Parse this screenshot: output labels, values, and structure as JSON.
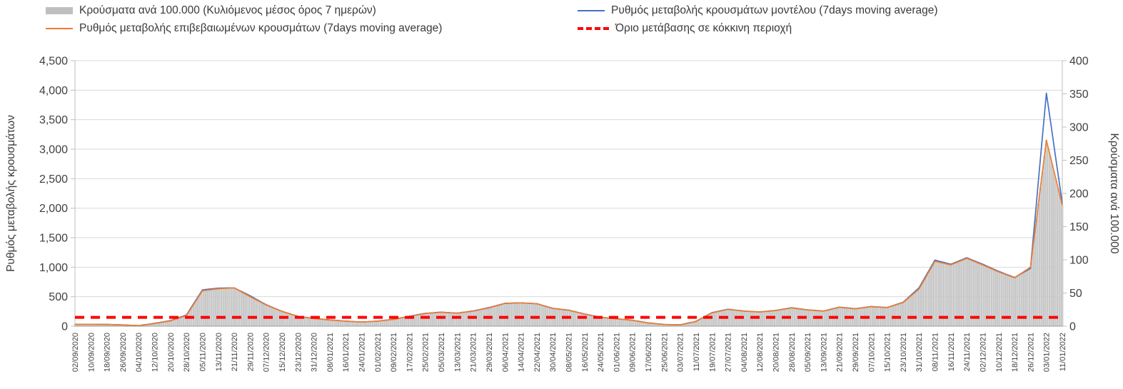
{
  "colors": {
    "bar_fill": "#d9d9d9",
    "bar_stroke": "#aeaeae",
    "model_line": "#4472c4",
    "confirmed_line": "#ed7d31",
    "threshold_line": "#ff0000",
    "grid": "#d9d9d9",
    "axis_line": "#bfbfbf",
    "text": "#404040"
  },
  "chart_data": {
    "type": "combo_bar_line",
    "title": "",
    "ylabel_left": "Ρυθμός μεταβολής κρουσμάτων",
    "ylabel_right": "Κρούσματα ανά 100.000",
    "left_ylim": [
      0,
      4500
    ],
    "left_step": 500,
    "right_ylim": [
      0,
      400
    ],
    "right_step": 50,
    "grid": true,
    "legend_position": "top",
    "categories": [
      "02/09/2020",
      "10/09/2020",
      "18/09/2020",
      "26/09/2020",
      "04/10/2020",
      "12/10/2020",
      "20/10/2020",
      "28/10/2020",
      "05/11/2020",
      "13/11/2020",
      "21/11/2020",
      "29/11/2020",
      "07/12/2020",
      "15/12/2020",
      "23/12/2020",
      "31/12/2020",
      "08/01/2021",
      "16/01/2021",
      "24/01/2021",
      "01/02/2021",
      "09/02/2021",
      "17/02/2021",
      "25/02/2021",
      "05/03/2021",
      "13/03/2021",
      "21/03/2021",
      "29/03/2021",
      "06/04/2021",
      "14/04/2021",
      "22/04/2021",
      "30/04/2021",
      "08/05/2021",
      "16/05/2021",
      "24/05/2021",
      "01/06/2021",
      "09/06/2021",
      "17/06/2021",
      "25/06/2021",
      "03/07/2021",
      "11/07/2021",
      "19/07/2021",
      "27/07/2021",
      "04/08/2021",
      "12/08/2021",
      "20/08/2021",
      "28/08/2021",
      "05/09/2021",
      "13/09/2021",
      "21/09/2021",
      "29/09/2021",
      "07/10/2021",
      "15/10/2021",
      "23/10/2021",
      "31/10/2021",
      "08/11/2021",
      "16/11/2021",
      "24/11/2021",
      "02/12/2021",
      "10/12/2021",
      "18/12/2021",
      "26/12/2021",
      "03/01/2022",
      "11/01/2022"
    ],
    "series": [
      {
        "role": "bars",
        "name": "Κρούσματα ανά 100.000 (Κυλιόμενος μέσος όρος 7 ημερών)",
        "type": "bar",
        "axis": "right",
        "values": [
          2.7,
          2.8,
          2.7,
          1.8,
          0.7,
          4,
          8,
          16,
          53,
          56,
          58,
          44,
          32,
          22,
          15,
          12,
          9,
          7.5,
          6,
          7.5,
          10,
          15,
          19,
          21,
          20,
          23,
          27,
          34,
          35,
          34,
          27,
          24,
          18,
          13,
          11,
          9,
          5,
          2.5,
          2,
          7,
          20,
          25,
          23,
          21,
          23,
          27,
          24,
          23,
          28,
          26,
          29,
          28,
          36,
          56,
          98,
          92,
          102,
          92,
          82,
          73,
          89,
          280,
          182
        ]
      },
      {
        "role": "model",
        "name": "Ρυθμός μεταβολής κρουσμάτων μοντέλου (7days moving average)",
        "type": "line",
        "axis": "left",
        "values": [
          32,
          33,
          30,
          22,
          10,
          48,
          95,
          190,
          615,
          645,
          650,
          515,
          365,
          252,
          168,
          132,
          107,
          86,
          71,
          86,
          117,
          168,
          218,
          238,
          222,
          258,
          315,
          388,
          396,
          382,
          303,
          272,
          207,
          152,
          127,
          101,
          56,
          29,
          23,
          83,
          230,
          288,
          257,
          242,
          267,
          313,
          277,
          257,
          323,
          297,
          333,
          317,
          405,
          650,
          1120,
          1050,
          1160,
          1050,
          930,
          825,
          980,
          3950,
          2080
        ]
      },
      {
        "role": "confirmed",
        "name": "Ρυθμός μεταβολής επιβεβαιωμένων κρουσμάτων (7days moving average)",
        "type": "line",
        "axis": "left",
        "values": [
          30,
          32,
          30,
          20,
          8,
          45,
          90,
          180,
          600,
          635,
          650,
          500,
          360,
          250,
          165,
          130,
          105,
          85,
          70,
          85,
          115,
          165,
          215,
          235,
          220,
          255,
          310,
          385,
          395,
          380,
          300,
          270,
          205,
          150,
          125,
          100,
          55,
          28,
          22,
          80,
          225,
          285,
          255,
          240,
          265,
          310,
          275,
          255,
          320,
          295,
          330,
          315,
          400,
          630,
          1100,
          1040,
          1150,
          1040,
          920,
          820,
          1000,
          3150,
          2050
        ]
      },
      {
        "role": "threshold",
        "name": "Όριο μετάβασης σε κόκκινη περιοχή",
        "type": "threshold",
        "axis": "left",
        "value": 150
      }
    ]
  }
}
